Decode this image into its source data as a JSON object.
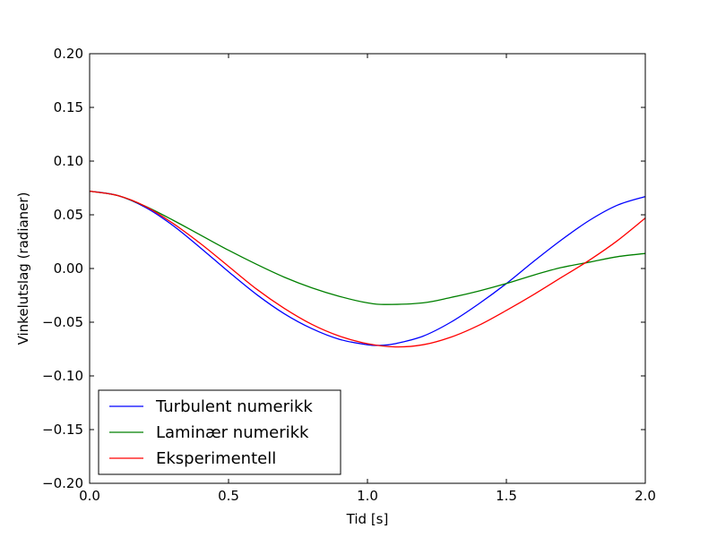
{
  "chart_data": {
    "type": "line",
    "title": "",
    "xlabel": "Tid [s]",
    "ylabel": "Vinkelutslag (radianer)",
    "xlim": [
      0.0,
      2.0
    ],
    "ylim": [
      -0.2,
      0.2
    ],
    "x_ticks": [
      "0.0",
      "0.5",
      "1.0",
      "1.5",
      "2.0"
    ],
    "y_ticks": [
      "0.20",
      "0.15",
      "0.10",
      "0.05",
      "0.00",
      "−0.05",
      "−0.10",
      "−0.15",
      "−0.20"
    ],
    "grid": false,
    "legend_position": "lower-left",
    "series": [
      {
        "name": "Turbulent numerikk",
        "color": "#0000ff",
        "x": [
          0.0,
          0.1,
          0.2,
          0.3,
          0.4,
          0.5,
          0.6,
          0.7,
          0.8,
          0.9,
          1.0,
          1.05,
          1.1,
          1.2,
          1.3,
          1.4,
          1.5,
          1.6,
          1.7,
          1.8,
          1.9,
          2.0
        ],
        "y": [
          0.072,
          0.068,
          0.057,
          0.04,
          0.019,
          -0.003,
          -0.024,
          -0.042,
          -0.056,
          -0.066,
          -0.071,
          -0.0715,
          -0.07,
          -0.063,
          -0.05,
          -0.033,
          -0.014,
          0.007,
          0.027,
          0.045,
          0.059,
          0.067
        ]
      },
      {
        "name": "Laminær numerikk",
        "color": "#008000",
        "x": [
          0.0,
          0.1,
          0.2,
          0.3,
          0.4,
          0.5,
          0.6,
          0.7,
          0.8,
          0.9,
          1.0,
          1.07,
          1.2,
          1.3,
          1.4,
          1.5,
          1.6,
          1.7,
          1.8,
          1.9,
          2.0
        ],
        "y": [
          0.072,
          0.068,
          0.058,
          0.045,
          0.031,
          0.017,
          0.004,
          -0.008,
          -0.018,
          -0.026,
          -0.032,
          -0.0335,
          -0.032,
          -0.027,
          -0.021,
          -0.014,
          -0.006,
          0.001,
          0.006,
          0.011,
          0.014
        ]
      },
      {
        "name": "Eksperimentell",
        "color": "#ff0000",
        "x": [
          0.0,
          0.1,
          0.2,
          0.3,
          0.4,
          0.5,
          0.6,
          0.7,
          0.8,
          0.9,
          1.0,
          1.1,
          1.2,
          1.3,
          1.4,
          1.5,
          1.6,
          1.7,
          1.8,
          1.9,
          2.0
        ],
        "y": [
          0.072,
          0.068,
          0.058,
          0.042,
          0.023,
          0.002,
          -0.019,
          -0.037,
          -0.052,
          -0.063,
          -0.07,
          -0.073,
          -0.071,
          -0.064,
          -0.053,
          -0.039,
          -0.024,
          -0.008,
          0.008,
          0.026,
          0.047
        ]
      }
    ]
  }
}
